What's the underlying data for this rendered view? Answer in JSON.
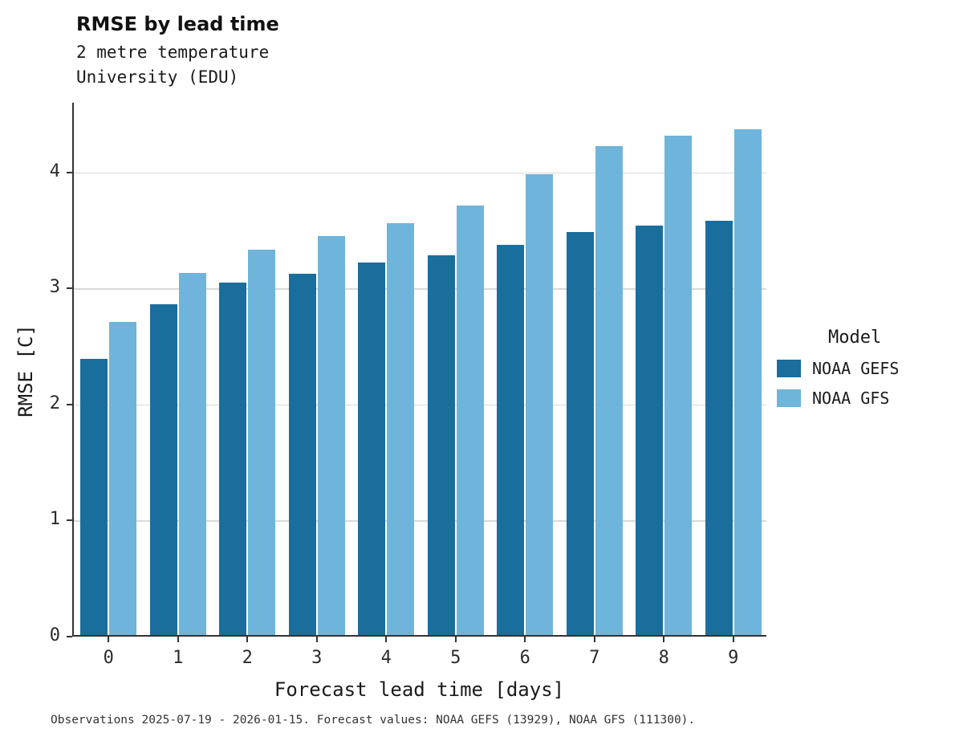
{
  "header": {
    "title": "RMSE by lead time",
    "subtitle": "2 metre temperature\nUniversity (EDU)"
  },
  "axes": {
    "xlabel": "Forecast lead time [days]",
    "ylabel": "RMSE [C]"
  },
  "legend": {
    "title": "Model",
    "entries": [
      {
        "label": "NOAA GEFS",
        "color": "#1a6e9c"
      },
      {
        "label": "NOAA GFS",
        "color": "#6fb4da"
      }
    ]
  },
  "caption": "Observations 2025-07-19 - 2026-01-15. Forecast values: NOAA GEFS (13929), NOAA GFS (111300).",
  "chart_data": {
    "type": "bar",
    "title": "RMSE by lead time",
    "subtitle": "2 metre temperature University (EDU)",
    "xlabel": "Forecast lead time [days]",
    "ylabel": "RMSE [C]",
    "categories": [
      0,
      1,
      2,
      3,
      4,
      5,
      6,
      7,
      8,
      9
    ],
    "series": [
      {
        "name": "NOAA GEFS",
        "color": "#1a6e9c",
        "values": [
          2.38,
          2.85,
          3.04,
          3.11,
          3.21,
          3.27,
          3.36,
          3.47,
          3.53,
          3.57
        ]
      },
      {
        "name": "NOAA GFS",
        "color": "#6fb4da",
        "values": [
          2.7,
          3.12,
          3.32,
          3.44,
          3.55,
          3.7,
          3.97,
          4.21,
          4.3,
          4.36
        ]
      }
    ],
    "ylim": [
      0,
      4.6
    ],
    "yticks": [
      0,
      1,
      2,
      3,
      4
    ],
    "grid": true,
    "legend_position": "right",
    "grid_color": "#d9d9d9"
  }
}
